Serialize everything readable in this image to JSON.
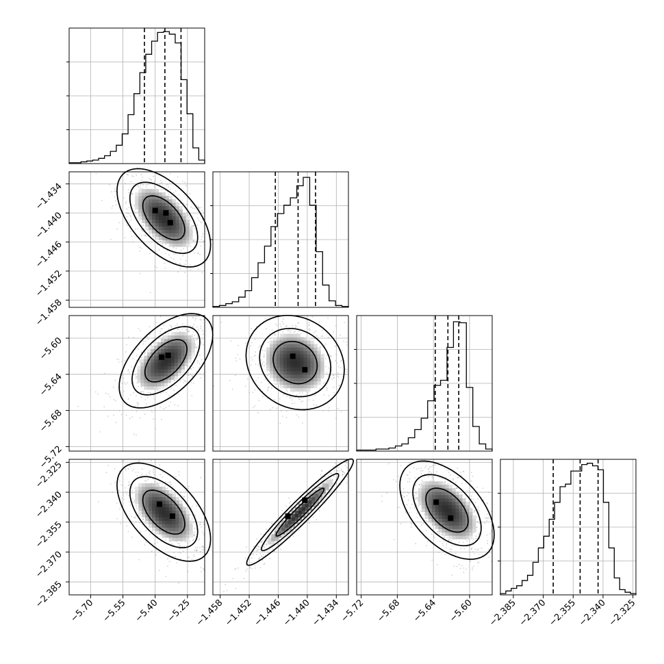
{
  "chart_data": {
    "type": "corner",
    "parameters": [
      {
        "range": [
          -5.8,
          -5.17
        ],
        "ticks": [
          -5.7,
          -5.55,
          -5.4,
          -5.25
        ],
        "tick_labels": [
          "−5.70",
          "−5.55",
          "−5.40",
          "−5.25"
        ],
        "quantiles": [
          -5.45,
          -5.355,
          -5.28
        ],
        "hist_counts": [
          1,
          1,
          2,
          3,
          4,
          6,
          9,
          14,
          21,
          34,
          56,
          80,
          104,
          125,
          140,
          150,
          151,
          148,
          138,
          96,
          57,
          18,
          4
        ],
        "hist_max": 155
      },
      {
        "range": [
          -1.4595,
          -1.4315
        ],
        "ticks": [
          -1.458,
          -1.452,
          -1.446,
          -1.44,
          -1.434
        ],
        "tick_labels": [
          "−1.458",
          "−1.452",
          "−1.446",
          "−1.440",
          "−1.434"
        ],
        "quantiles": [
          -1.4466,
          -1.4419,
          -1.4383
        ],
        "hist_counts": [
          1,
          2,
          4,
          6,
          11,
          18,
          32,
          48,
          66,
          87,
          101,
          110,
          118,
          131,
          140,
          110,
          60,
          24,
          7,
          2,
          1
        ],
        "hist_max": 146
      },
      {
        "range": [
          -5.725,
          -5.575
        ],
        "ticks": [
          -5.72,
          -5.68,
          -5.64,
          -5.6
        ],
        "tick_labels": [
          "−5.72",
          "−5.68",
          "−5.64",
          "−5.60"
        ],
        "quantiles": [
          -5.638,
          -5.624,
          -5.612
        ],
        "hist_counts": [
          1,
          1,
          1,
          2,
          2,
          3,
          5,
          7,
          13,
          21,
          32,
          49,
          64,
          69,
          101,
          126,
          125,
          62,
          24,
          7,
          2
        ],
        "hist_max": 132
      },
      {
        "range": [
          -2.3915,
          -2.3235
        ],
        "ticks": [
          -2.385,
          -2.37,
          -2.355,
          -2.34,
          -2.325
        ],
        "tick_labels": [
          "−2.385",
          "−2.370",
          "−2.355",
          "−2.340",
          "−2.325"
        ],
        "quantiles": [
          -2.365,
          -2.3515,
          -2.3425
        ],
        "hist_counts": [
          1,
          3,
          5,
          7,
          11,
          15,
          25,
          36,
          45,
          58,
          71,
          83,
          85,
          95,
          95,
          100,
          101,
          99,
          96,
          71,
          36,
          13,
          4,
          2,
          1
        ],
        "hist_max": 104
      }
    ],
    "pairs": [
      {
        "x": 0,
        "y": 1,
        "mean": [
          -5.36,
          -1.441
        ],
        "sd": [
          0.075,
          0.0035
        ],
        "rho": -0.55,
        "peaks": [
          [
            -5.4,
            -1.4395
          ],
          [
            -5.35,
            -1.44
          ],
          [
            -5.33,
            -1.442
          ]
        ]
      },
      {
        "x": 0,
        "y": 2,
        "mean": [
          -5.35,
          -5.625
        ],
        "sd": [
          0.075,
          0.018
        ],
        "rho": 0.55,
        "peaks": [
          [
            -5.37,
            -5.621
          ],
          [
            -5.34,
            -5.619
          ]
        ]
      },
      {
        "x": 1,
        "y": 2,
        "mean": [
          -1.4425,
          -5.627
        ],
        "sd": [
          0.0035,
          0.018
        ],
        "rho": -0.15,
        "peaks": [
          [
            -1.443,
            -5.62
          ],
          [
            -1.4405,
            -5.635
          ]
        ]
      },
      {
        "x": 0,
        "y": 3,
        "mean": [
          -5.36,
          -2.35
        ],
        "sd": [
          0.075,
          0.0085
        ],
        "rho": -0.55,
        "peaks": [
          [
            -5.38,
            -2.346
          ],
          [
            -5.32,
            -2.352
          ]
        ]
      },
      {
        "x": 1,
        "y": 3,
        "mean": [
          -1.4415,
          -2.35
        ],
        "sd": [
          0.0038,
          0.0092
        ],
        "rho": 0.96,
        "peaks": [
          [
            -1.4405,
            -2.344
          ],
          [
            -1.444,
            -2.352
          ]
        ]
      },
      {
        "x": 2,
        "y": 3,
        "mean": [
          -5.625,
          -2.349
        ],
        "sd": [
          0.018,
          0.0085
        ],
        "rho": -0.5,
        "peaks": [
          [
            -5.637,
            -2.345
          ],
          [
            -5.621,
            -2.353
          ]
        ]
      }
    ]
  }
}
